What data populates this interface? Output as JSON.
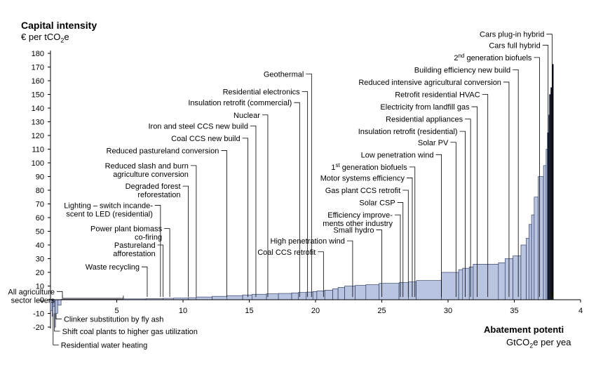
{
  "chart_data": {
    "type": "bar",
    "title": "",
    "ylabel": "Capital intensity",
    "yunit_prefix": "€ per tCO",
    "yunit_sub": "2",
    "yunit_suffix": "e",
    "xlabel": "Abatement potenti",
    "xunit_prefix": "GtCO",
    "xunit_sub": "2",
    "xunit_suffix": "e per yea",
    "xlim": [
      0,
      40
    ],
    "ylim": [
      -20,
      180
    ],
    "xticks": [
      "5",
      "10",
      "15",
      "20",
      "25",
      "30",
      "35",
      "4"
    ],
    "yticks": [
      "-20",
      "-10",
      "0",
      "10",
      "20",
      "30",
      "40",
      "50",
      "60",
      "70",
      "80",
      "90",
      "100",
      "110",
      "120",
      "130",
      "140",
      "150",
      "160",
      "170",
      "180"
    ],
    "bars": [
      {
        "x0": 0.0,
        "x1": 0.12,
        "v": -8
      },
      {
        "x0": 0.12,
        "x1": 0.2,
        "v": -12
      },
      {
        "x0": 0.2,
        "x1": 0.3,
        "v": -5
      },
      {
        "x0": 0.3,
        "x1": 0.38,
        "v": -20
      },
      {
        "x0": 0.38,
        "x1": 0.55,
        "v": -10
      },
      {
        "x0": 0.55,
        "x1": 0.8,
        "v": -4
      },
      {
        "x0": 0.8,
        "x1": 5.5,
        "v": 0.3
      },
      {
        "x0": 5.5,
        "x1": 7.2,
        "v": 0.6
      },
      {
        "x0": 7.2,
        "x1": 8.5,
        "v": 0.8
      },
      {
        "x0": 8.5,
        "x1": 9.3,
        "v": 1
      },
      {
        "x0": 9.3,
        "x1": 10.4,
        "v": 1.2
      },
      {
        "x0": 10.4,
        "x1": 11.0,
        "v": 1.5
      },
      {
        "x0": 11.0,
        "x1": 12.2,
        "v": 2
      },
      {
        "x0": 12.2,
        "x1": 13.3,
        "v": 2.5
      },
      {
        "x0": 13.3,
        "x1": 14.5,
        "v": 3
      },
      {
        "x0": 14.5,
        "x1": 15.2,
        "v": 3.5
      },
      {
        "x0": 15.2,
        "x1": 16.3,
        "v": 4
      },
      {
        "x0": 16.3,
        "x1": 17.2,
        "v": 4.3
      },
      {
        "x0": 17.2,
        "x1": 18.2,
        "v": 4.6
      },
      {
        "x0": 18.2,
        "x1": 18.7,
        "v": 5
      },
      {
        "x0": 18.7,
        "x1": 19.3,
        "v": 5.3
      },
      {
        "x0": 19.3,
        "x1": 19.8,
        "v": 5.6
      },
      {
        "x0": 19.8,
        "x1": 20.1,
        "v": 6
      },
      {
        "x0": 20.1,
        "x1": 20.7,
        "v": 6.5
      },
      {
        "x0": 20.7,
        "x1": 21.3,
        "v": 7
      },
      {
        "x0": 21.3,
        "x1": 21.7,
        "v": 8
      },
      {
        "x0": 21.7,
        "x1": 22.2,
        "v": 9
      },
      {
        "x0": 22.2,
        "x1": 23.0,
        "v": 10
      },
      {
        "x0": 23.0,
        "x1": 23.8,
        "v": 10.5
      },
      {
        "x0": 23.8,
        "x1": 24.8,
        "v": 11
      },
      {
        "x0": 24.8,
        "x1": 26.3,
        "v": 12
      },
      {
        "x0": 26.3,
        "x1": 27.0,
        "v": 12.5
      },
      {
        "x0": 27.0,
        "x1": 27.6,
        "v": 13
      },
      {
        "x0": 27.6,
        "x1": 29.5,
        "v": 14
      },
      {
        "x0": 29.5,
        "x1": 30.8,
        "v": 20
      },
      {
        "x0": 30.8,
        "x1": 31.1,
        "v": 22
      },
      {
        "x0": 31.1,
        "x1": 31.6,
        "v": 23
      },
      {
        "x0": 31.6,
        "x1": 31.9,
        "v": 24
      },
      {
        "x0": 31.9,
        "x1": 33.8,
        "v": 26
      },
      {
        "x0": 33.8,
        "x1": 34.3,
        "v": 27
      },
      {
        "x0": 34.3,
        "x1": 34.9,
        "v": 30
      },
      {
        "x0": 34.9,
        "x1": 35.5,
        "v": 32
      },
      {
        "x0": 35.5,
        "x1": 35.9,
        "v": 40
      },
      {
        "x0": 35.9,
        "x1": 36.1,
        "v": 45
      },
      {
        "x0": 36.1,
        "x1": 36.3,
        "v": 55
      },
      {
        "x0": 36.3,
        "x1": 36.5,
        "v": 62
      },
      {
        "x0": 36.5,
        "x1": 36.8,
        "v": 75
      },
      {
        "x0": 36.8,
        "x1": 37.2,
        "v": 90
      },
      {
        "x0": 37.2,
        "x1": 37.4,
        "v": 98
      },
      {
        "x0": 37.4,
        "x1": 37.5,
        "v": 110
      },
      {
        "x0": 37.5,
        "x1": 37.6,
        "v": 122
      },
      {
        "x0": 37.6,
        "x1": 37.65,
        "v": 135
      },
      {
        "x0": 37.65,
        "x1": 37.75,
        "v": 150
      },
      {
        "x0": 37.75,
        "x1": 37.85,
        "v": 155
      },
      {
        "x0": 37.85,
        "x1": 37.95,
        "v": 172
      }
    ],
    "annotations": [
      {
        "label": "Cars plug-in hybrid",
        "x": 37.85,
        "y": 194
      },
      {
        "label": "Cars full hybrid",
        "x": 37.55,
        "y": 186
      },
      {
        "label": "2nd generation biofuels",
        "x": 36.9,
        "y": 177,
        "sup": "nd",
        "pre": "2",
        "post": " generation biofuels"
      },
      {
        "label": "Building efficiency new build",
        "x": 35.3,
        "y": 168
      },
      {
        "label": "Reduced intensive agricultural conversion",
        "x": 34.6,
        "y": 159
      },
      {
        "label": "Retrofit residential HVAC",
        "x": 33.0,
        "y": 150
      },
      {
        "label": "Electricity from landfill gas",
        "x": 32.2,
        "y": 141
      },
      {
        "label": "Residential appliances",
        "x": 31.7,
        "y": 132
      },
      {
        "label": "Insulation retrofit (residential)",
        "x": 31.3,
        "y": 123
      },
      {
        "label": "Solar PV",
        "x": 30.6,
        "y": 115
      },
      {
        "label": "Low penetration wind",
        "x": 29.5,
        "y": 106
      },
      {
        "label": "1st generation biofuels",
        "x": 27.5,
        "y": 97,
        "sup": "st",
        "pre": "1",
        "post": " generation biofuels"
      },
      {
        "label": "Motor systems efficiency",
        "x": 27.3,
        "y": 89
      },
      {
        "label": "Gas plant CCS retrofit",
        "x": 27.0,
        "y": 80
      },
      {
        "label": "Solar CSP",
        "x": 26.6,
        "y": 71
      },
      {
        "label": "Efficiency improve-",
        "label2": "ments other industry",
        "x": 26.4,
        "y": 62
      },
      {
        "label": "Small hydro",
        "x": 25.0,
        "y": 51
      },
      {
        "label": "High penetration wind",
        "x": 22.8,
        "y": 43
      },
      {
        "label": "Coal CCS retrofit",
        "x": 20.6,
        "y": 35
      },
      {
        "label": "Geothermal",
        "x": 19.7,
        "y": 165
      },
      {
        "label": "Residential electronics",
        "x": 19.4,
        "y": 152
      },
      {
        "label": "Insulation retrofit (commercial)",
        "x": 18.8,
        "y": 144
      },
      {
        "label": "Nuclear",
        "x": 16.4,
        "y": 135
      },
      {
        "label": "Iron and steel CCS new build",
        "x": 15.5,
        "y": 127
      },
      {
        "label": "Coal CCS new build",
        "x": 14.9,
        "y": 118
      },
      {
        "label": "Reduced pastureland conversion",
        "x": 13.3,
        "y": 109
      },
      {
        "label": "Reduced slash and burn",
        "label2": "agriculture conversion",
        "x": 11.0,
        "y": 98
      },
      {
        "label": "Degraded forest",
        "label2": "reforestation",
        "x": 10.4,
        "y": 83
      },
      {
        "label": "Lighting – switch incande-",
        "label2": "scent to LED (residential)",
        "x": 8.3,
        "y": 69
      },
      {
        "label": "Power plant biomass",
        "label2": "co-firing",
        "x": 9.0,
        "y": 52
      },
      {
        "label": "Pastureland",
        "label2": "afforestation",
        "x": 8.5,
        "y": 40
      },
      {
        "label": "Waste recycling",
        "x": 7.3,
        "y": 24
      },
      {
        "label": "All agriculture",
        "label2": "sector levers",
        "x": 0.9,
        "y": 6
      },
      {
        "label": "Clinker substitution by fly ash",
        "x": 0.42,
        "y": -14
      },
      {
        "label": "Shift coal plants to higher gas utilization",
        "x": 0.3,
        "y": -23
      },
      {
        "label": "Residential water heating",
        "x": 0.2,
        "y": -33
      }
    ]
  },
  "y_title": {
    "text": "Capital intensity"
  },
  "x_title": {
    "text": "Abatement potenti"
  }
}
